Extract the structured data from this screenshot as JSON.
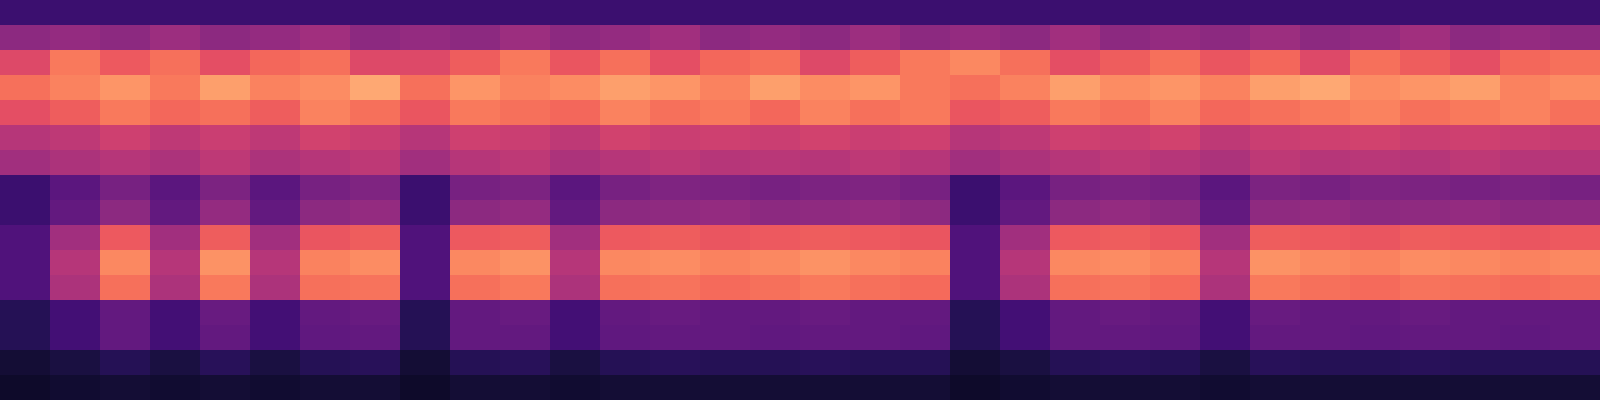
{
  "chart_data": {
    "type": "heatmap",
    "color": "magma",
    "tick_labels": false,
    "color_range": [
      0,
      1
    ],
    "cells": [
      [
        0.2,
        0.2,
        0.2,
        0.2,
        0.2,
        0.2,
        0.2,
        0.2,
        0.2,
        0.2,
        0.2,
        0.2,
        0.2,
        0.2,
        0.2,
        0.2,
        0.2,
        0.2,
        0.2,
        0.2,
        0.2,
        0.2,
        0.2,
        0.2,
        0.2,
        0.2,
        0.2,
        0.2,
        0.2,
        0.2,
        0.2,
        0.2
      ],
      [
        0.4,
        0.42,
        0.4,
        0.44,
        0.4,
        0.42,
        0.45,
        0.4,
        0.42,
        0.4,
        0.44,
        0.4,
        0.42,
        0.45,
        0.4,
        0.42,
        0.4,
        0.44,
        0.4,
        0.42,
        0.4,
        0.45,
        0.4,
        0.42,
        0.4,
        0.44,
        0.4,
        0.42,
        0.45,
        0.4,
        0.42,
        0.4
      ],
      [
        0.6,
        0.72,
        0.65,
        0.7,
        0.62,
        0.68,
        0.7,
        0.6,
        0.6,
        0.66,
        0.72,
        0.64,
        0.7,
        0.62,
        0.68,
        0.7,
        0.6,
        0.66,
        0.72,
        0.75,
        0.7,
        0.62,
        0.66,
        0.7,
        0.64,
        0.68,
        0.6,
        0.7,
        0.66,
        0.62,
        0.68,
        0.7
      ],
      [
        0.7,
        0.74,
        0.78,
        0.72,
        0.8,
        0.74,
        0.76,
        0.82,
        0.7,
        0.78,
        0.74,
        0.76,
        0.8,
        0.78,
        0.74,
        0.8,
        0.76,
        0.78,
        0.72,
        0.7,
        0.74,
        0.8,
        0.76,
        0.78,
        0.74,
        0.8,
        0.82,
        0.76,
        0.78,
        0.8,
        0.74,
        0.76
      ],
      [
        0.62,
        0.66,
        0.72,
        0.68,
        0.7,
        0.66,
        0.74,
        0.7,
        0.64,
        0.72,
        0.7,
        0.68,
        0.74,
        0.7,
        0.72,
        0.68,
        0.74,
        0.7,
        0.72,
        0.64,
        0.66,
        0.72,
        0.7,
        0.74,
        0.68,
        0.7,
        0.72,
        0.74,
        0.7,
        0.72,
        0.74,
        0.7
      ],
      [
        0.5,
        0.52,
        0.56,
        0.52,
        0.55,
        0.52,
        0.57,
        0.55,
        0.5,
        0.56,
        0.55,
        0.52,
        0.57,
        0.55,
        0.56,
        0.55,
        0.57,
        0.55,
        0.56,
        0.5,
        0.52,
        0.56,
        0.55,
        0.57,
        0.52,
        0.55,
        0.56,
        0.57,
        0.55,
        0.56,
        0.55,
        0.54
      ],
      [
        0.45,
        0.48,
        0.5,
        0.48,
        0.52,
        0.48,
        0.5,
        0.52,
        0.45,
        0.5,
        0.52,
        0.48,
        0.5,
        0.52,
        0.5,
        0.51,
        0.5,
        0.52,
        0.5,
        0.45,
        0.48,
        0.5,
        0.52,
        0.5,
        0.48,
        0.52,
        0.5,
        0.51,
        0.5,
        0.52,
        0.5,
        0.5
      ],
      [
        0.2,
        0.28,
        0.35,
        0.28,
        0.36,
        0.28,
        0.35,
        0.37,
        0.2,
        0.35,
        0.36,
        0.28,
        0.35,
        0.37,
        0.36,
        0.35,
        0.36,
        0.37,
        0.35,
        0.2,
        0.28,
        0.35,
        0.36,
        0.35,
        0.28,
        0.36,
        0.35,
        0.37,
        0.36,
        0.35,
        0.36,
        0.35
      ],
      [
        0.2,
        0.3,
        0.4,
        0.3,
        0.42,
        0.3,
        0.4,
        0.42,
        0.2,
        0.4,
        0.42,
        0.3,
        0.4,
        0.41,
        0.42,
        0.4,
        0.41,
        0.42,
        0.4,
        0.2,
        0.3,
        0.4,
        0.42,
        0.4,
        0.3,
        0.41,
        0.42,
        0.4,
        0.41,
        0.42,
        0.4,
        0.41
      ],
      [
        0.25,
        0.45,
        0.65,
        0.45,
        0.66,
        0.45,
        0.64,
        0.66,
        0.25,
        0.65,
        0.66,
        0.45,
        0.65,
        0.66,
        0.64,
        0.65,
        0.66,
        0.65,
        0.64,
        0.25,
        0.45,
        0.65,
        0.66,
        0.64,
        0.45,
        0.66,
        0.65,
        0.64,
        0.66,
        0.65,
        0.64,
        0.65
      ],
      [
        0.25,
        0.5,
        0.75,
        0.5,
        0.77,
        0.5,
        0.74,
        0.76,
        0.25,
        0.75,
        0.77,
        0.5,
        0.75,
        0.76,
        0.74,
        0.75,
        0.77,
        0.75,
        0.74,
        0.25,
        0.5,
        0.75,
        0.76,
        0.74,
        0.5,
        0.77,
        0.75,
        0.74,
        0.76,
        0.75,
        0.74,
        0.75
      ],
      [
        0.25,
        0.48,
        0.7,
        0.48,
        0.72,
        0.48,
        0.7,
        0.71,
        0.25,
        0.7,
        0.72,
        0.48,
        0.7,
        0.71,
        0.69,
        0.7,
        0.72,
        0.7,
        0.69,
        0.25,
        0.48,
        0.7,
        0.71,
        0.69,
        0.48,
        0.72,
        0.7,
        0.69,
        0.71,
        0.7,
        0.69,
        0.7
      ],
      [
        0.15,
        0.22,
        0.3,
        0.22,
        0.31,
        0.22,
        0.3,
        0.31,
        0.15,
        0.3,
        0.31,
        0.22,
        0.3,
        0.31,
        0.3,
        0.3,
        0.31,
        0.3,
        0.3,
        0.15,
        0.22,
        0.3,
        0.31,
        0.3,
        0.22,
        0.31,
        0.3,
        0.3,
        0.31,
        0.3,
        0.3,
        0.3
      ],
      [
        0.15,
        0.22,
        0.3,
        0.22,
        0.3,
        0.22,
        0.29,
        0.3,
        0.15,
        0.3,
        0.3,
        0.22,
        0.29,
        0.3,
        0.3,
        0.29,
        0.3,
        0.3,
        0.29,
        0.15,
        0.22,
        0.3,
        0.3,
        0.29,
        0.22,
        0.3,
        0.3,
        0.29,
        0.3,
        0.3,
        0.29,
        0.3
      ],
      [
        0.1,
        0.12,
        0.15,
        0.12,
        0.16,
        0.12,
        0.15,
        0.16,
        0.1,
        0.15,
        0.16,
        0.12,
        0.15,
        0.16,
        0.15,
        0.15,
        0.16,
        0.15,
        0.15,
        0.1,
        0.12,
        0.15,
        0.16,
        0.15,
        0.12,
        0.16,
        0.15,
        0.15,
        0.16,
        0.15,
        0.15,
        0.15
      ],
      [
        0.08,
        0.09,
        0.1,
        0.09,
        0.1,
        0.09,
        0.1,
        0.1,
        0.08,
        0.1,
        0.1,
        0.09,
        0.1,
        0.1,
        0.1,
        0.1,
        0.1,
        0.1,
        0.1,
        0.08,
        0.09,
        0.1,
        0.1,
        0.1,
        0.09,
        0.1,
        0.1,
        0.1,
        0.1,
        0.1,
        0.1,
        0.1
      ]
    ]
  }
}
